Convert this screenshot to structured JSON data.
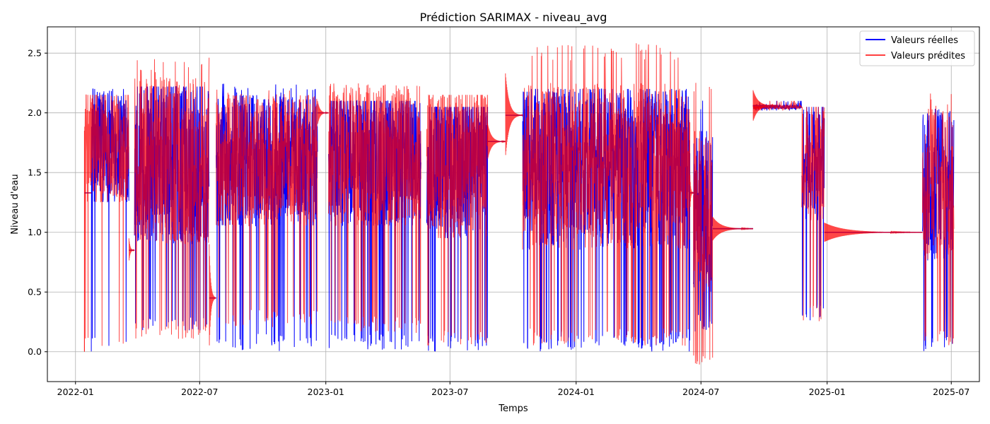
{
  "chart_data": {
    "type": "line",
    "title": "Prédiction SARIMAX - niveau_avg",
    "xlabel": "Temps",
    "ylabel": "Niveau d'eau",
    "x_range": [
      "2021-11-21",
      "2025-08-11"
    ],
    "ylim": [
      -0.25,
      2.72
    ],
    "x_ticks": [
      "2022-01",
      "2022-07",
      "2023-01",
      "2023-07",
      "2024-01",
      "2024-07",
      "2025-01",
      "2025-07"
    ],
    "y_ticks": [
      0.0,
      0.5,
      1.0,
      1.5,
      2.0,
      2.5
    ],
    "grid": true,
    "legend_position": "top-right",
    "series": [
      {
        "name": "Valeurs réelles",
        "color": "#0000ff",
        "segments": [
          {
            "start": "2022-01-24",
            "end": "2022-03-20",
            "mean": 1.75,
            "amp": 0.5,
            "min": 0.0,
            "max": 2.2
          },
          {
            "start": "2022-03-28",
            "end": "2022-07-15",
            "mean": 1.6,
            "amp": 0.7,
            "min": 0.17,
            "max": 2.22
          },
          {
            "start": "2022-07-25",
            "end": "2022-12-20",
            "mean": 1.6,
            "amp": 0.55,
            "min": 0.0,
            "max": 2.25
          },
          {
            "start": "2023-01-05",
            "end": "2023-05-20",
            "mean": 1.65,
            "amp": 0.6,
            "min": 0.0,
            "max": 2.1
          },
          {
            "start": "2023-05-28",
            "end": "2023-08-25",
            "mean": 1.6,
            "amp": 0.65,
            "min": 0.0,
            "max": 2.05
          },
          {
            "start": "2023-10-15",
            "end": "2024-06-15",
            "mean": 1.55,
            "amp": 0.7,
            "min": 0.0,
            "max": 2.2
          },
          {
            "start": "2024-06-20",
            "end": "2024-07-18",
            "mean": 1.2,
            "amp": 0.7,
            "min": 0.17,
            "max": 2.15
          },
          {
            "start": "2024-09-15",
            "end": "2024-11-25",
            "mean": 2.05,
            "amp": 0.02,
            "min": 2.02,
            "max": 2.1
          },
          {
            "start": "2024-11-25",
            "end": "2024-12-28",
            "mean": 1.6,
            "amp": 0.5,
            "min": 0.25,
            "max": 2.05
          },
          {
            "start": "2025-05-20",
            "end": "2025-07-05",
            "mean": 1.4,
            "amp": 0.65,
            "min": 0.0,
            "max": 2.05
          }
        ],
        "plateaus": [
          {
            "start": "2024-07-18",
            "end": "2024-09-15",
            "value": 1.03
          },
          {
            "start": "2024-12-28",
            "end": "2025-05-20",
            "value": 1.0
          }
        ]
      },
      {
        "name": "Valeurs prédites",
        "color": "#ff0000",
        "segments": [
          {
            "start": "2022-01-14",
            "end": "2022-03-20",
            "mean": 1.75,
            "amp": 0.5,
            "min": 0.0,
            "max": 2.15
          },
          {
            "start": "2022-03-28",
            "end": "2022-07-15",
            "mean": 1.6,
            "amp": 0.7,
            "min": 0.1,
            "max": 2.47
          },
          {
            "start": "2022-07-25",
            "end": "2022-12-20",
            "mean": 1.6,
            "amp": 0.55,
            "min": 0.2,
            "max": 2.2
          },
          {
            "start": "2023-01-05",
            "end": "2023-05-20",
            "mean": 1.65,
            "amp": 0.6,
            "min": 0.15,
            "max": 2.25
          },
          {
            "start": "2023-05-28",
            "end": "2023-08-25",
            "mean": 1.6,
            "amp": 0.65,
            "min": 0.05,
            "max": 2.15
          },
          {
            "start": "2023-10-15",
            "end": "2024-06-15",
            "mean": 1.55,
            "amp": 0.7,
            "min": 0.05,
            "max": 2.59
          },
          {
            "start": "2024-06-20",
            "end": "2024-07-18",
            "mean": 1.2,
            "amp": 0.7,
            "min": -0.12,
            "max": 2.3
          },
          {
            "start": "2024-09-15",
            "end": "2024-11-25",
            "mean": 2.05,
            "amp": 0.02,
            "min": 2.02,
            "max": 2.1
          },
          {
            "start": "2024-11-25",
            "end": "2024-12-28",
            "mean": 1.6,
            "amp": 0.5,
            "min": 0.25,
            "max": 2.05
          },
          {
            "start": "2025-05-20",
            "end": "2025-07-05",
            "mean": 1.4,
            "amp": 0.65,
            "min": 0.05,
            "max": 2.19
          }
        ],
        "decay_bands": [
          {
            "start": "2022-03-20",
            "end": "2022-03-28",
            "value": 0.85,
            "amp": 0.1
          },
          {
            "start": "2022-07-15",
            "end": "2022-07-25",
            "value": 0.45,
            "amp": 0.45
          },
          {
            "start": "2022-12-20",
            "end": "2023-01-05",
            "value": 2.0,
            "amp": 0.1
          },
          {
            "start": "2023-08-25",
            "end": "2023-09-20",
            "value": 1.76,
            "amp": 0.15
          },
          {
            "start": "2023-09-20",
            "end": "2023-10-15",
            "value": 1.98,
            "amp": 0.35
          },
          {
            "start": "2024-06-15",
            "end": "2024-06-20",
            "value": 1.33,
            "amp": 0.15
          },
          {
            "start": "2024-07-18",
            "end": "2024-09-15",
            "value": 1.03,
            "amp": 0.1
          },
          {
            "start": "2024-09-15",
            "end": "2024-10-20",
            "value": 2.06,
            "amp": 0.13
          },
          {
            "start": "2024-12-28",
            "end": "2025-05-20",
            "value": 1.0,
            "amp": 0.08
          }
        ],
        "initial_flat": {
          "start": "2022-01-14",
          "end": "2022-01-24",
          "value": 1.33
        }
      }
    ]
  }
}
